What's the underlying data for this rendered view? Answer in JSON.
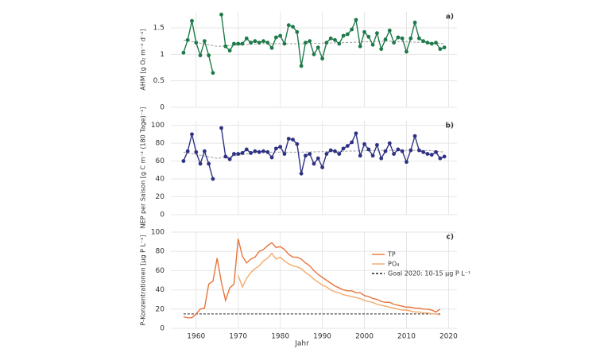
{
  "chart_data": [
    {
      "type": "line",
      "panel_label": "a)",
      "y_label": "AHM [g O₂ m⁻² d⁻¹]",
      "x": [
        1957,
        1958,
        1959,
        1960,
        1961,
        1962,
        1963,
        1964,
        1965,
        1966,
        1967,
        1968,
        1969,
        1970,
        1971,
        1972,
        1973,
        1974,
        1975,
        1976,
        1977,
        1978,
        1979,
        1980,
        1981,
        1982,
        1983,
        1984,
        1985,
        1986,
        1987,
        1988,
        1989,
        1990,
        1991,
        1992,
        1993,
        1994,
        1995,
        1996,
        1997,
        1998,
        1999,
        2000,
        2001,
        2002,
        2003,
        2004,
        2005,
        2006,
        2007,
        2008,
        2009,
        2010,
        2011,
        2012,
        2013,
        2014,
        2015,
        2016,
        2017,
        2018,
        2019
      ],
      "series": [
        {
          "color": "#1e7a4a",
          "markers": true,
          "values": [
            1.03,
            1.27,
            1.63,
            1.22,
            0.98,
            1.25,
            0.98,
            0.65,
            null,
            1.75,
            1.15,
            1.07,
            1.2,
            1.2,
            1.2,
            1.3,
            1.22,
            1.25,
            1.22,
            1.25,
            1.22,
            1.12,
            1.32,
            1.35,
            1.2,
            1.55,
            1.52,
            1.42,
            0.78,
            1.22,
            1.25,
            1.0,
            1.13,
            0.92,
            1.22,
            1.3,
            1.27,
            1.2,
            1.35,
            1.38,
            1.47,
            1.65,
            1.15,
            1.42,
            1.33,
            1.18,
            1.4,
            1.1,
            1.28,
            1.45,
            1.22,
            1.32,
            1.3,
            1.05,
            1.3,
            1.6,
            1.3,
            1.25,
            1.22,
            1.2,
            1.22,
            1.1,
            1.13
          ]
        }
      ],
      "trend": {
        "color": "#9a9a9a",
        "x": [
          1957,
          1965,
          1975,
          1985,
          1995,
          2005,
          2015,
          2019
        ],
        "values": [
          1.27,
          1.15,
          1.2,
          1.2,
          1.22,
          1.25,
          1.22,
          1.2
        ]
      },
      "ylim": [
        0,
        1.8
      ],
      "yticks": [
        0,
        0.5,
        1,
        1.5
      ],
      "grid": true
    },
    {
      "type": "line",
      "panel_label": "b)",
      "y_label": "NEP per Saison [g C m⁻² (180 Tage)⁻¹]",
      "x": [
        1957,
        1958,
        1959,
        1960,
        1961,
        1962,
        1963,
        1964,
        1965,
        1966,
        1967,
        1968,
        1969,
        1970,
        1971,
        1972,
        1973,
        1974,
        1975,
        1976,
        1977,
        1978,
        1979,
        1980,
        1981,
        1982,
        1983,
        1984,
        1985,
        1986,
        1987,
        1988,
        1989,
        1990,
        1991,
        1992,
        1993,
        1994,
        1995,
        1996,
        1997,
        1998,
        1999,
        2000,
        2001,
        2002,
        2003,
        2004,
        2005,
        2006,
        2007,
        2008,
        2009,
        2010,
        2011,
        2012,
        2013,
        2014,
        2015,
        2016,
        2017,
        2018,
        2019
      ],
      "series": [
        {
          "color": "#2e3283",
          "markers": true,
          "values": [
            60,
            71,
            90,
            70,
            57,
            71,
            57,
            40,
            null,
            97,
            65,
            62,
            68,
            68,
            69,
            73,
            69,
            71,
            70,
            71,
            70,
            64,
            74,
            76,
            68,
            85,
            84,
            79,
            46,
            66,
            68,
            57,
            63,
            53,
            68,
            72,
            71,
            68,
            74,
            77,
            81,
            91,
            66,
            79,
            73,
            66,
            78,
            63,
            71,
            80,
            68,
            73,
            71,
            59,
            72,
            88,
            72,
            70,
            68,
            67,
            70,
            63,
            65
          ]
        }
      ],
      "trend": {
        "color": "#9a9a9a",
        "x": [
          1957,
          1965,
          1975,
          1985,
          1995,
          2005,
          2015,
          2019
        ],
        "values": [
          70,
          63,
          70,
          70,
          71,
          72,
          72,
          70
        ]
      },
      "ylim": [
        0,
        105
      ],
      "yticks": [
        0,
        20,
        40,
        60,
        80,
        100
      ],
      "grid": true
    },
    {
      "type": "line",
      "panel_label": "c)",
      "y_label": "P-Konzentrationen [µg P L⁻¹]",
      "x_label": "Jahr",
      "x": [
        1957,
        1958,
        1959,
        1960,
        1961,
        1962,
        1963,
        1964,
        1965,
        1966,
        1967,
        1968,
        1969,
        1970,
        1971,
        1972,
        1973,
        1974,
        1975,
        1976,
        1977,
        1978,
        1979,
        1980,
        1981,
        1982,
        1983,
        1984,
        1985,
        1986,
        1987,
        1988,
        1989,
        1990,
        1991,
        1992,
        1993,
        1994,
        1995,
        1996,
        1997,
        1998,
        1999,
        2000,
        2001,
        2002,
        2003,
        2004,
        2005,
        2006,
        2007,
        2008,
        2009,
        2010,
        2011,
        2012,
        2013,
        2014,
        2015,
        2016,
        2017,
        2018
      ],
      "series": [
        {
          "name": "TP",
          "color": "#e8743b",
          "markers": false,
          "values": [
            12,
            11,
            11,
            15,
            20,
            21,
            46,
            49,
            73,
            48,
            29,
            42,
            46,
            93,
            75,
            68,
            72,
            74,
            80,
            82,
            86,
            89,
            84,
            85,
            82,
            77,
            74,
            74,
            72,
            68,
            65,
            60,
            56,
            53,
            50,
            47,
            44,
            42,
            40,
            39,
            39,
            37,
            37,
            34,
            33,
            31,
            30,
            28,
            27,
            27,
            25,
            24,
            23,
            22,
            22,
            21,
            21,
            20,
            20,
            19,
            17,
            20
          ]
        },
        {
          "name": "PO₄",
          "color": "#f4a96a",
          "markers": false,
          "values": [
            null,
            null,
            null,
            null,
            null,
            null,
            null,
            null,
            null,
            null,
            null,
            null,
            null,
            55,
            43,
            52,
            58,
            62,
            65,
            70,
            73,
            78,
            72,
            74,
            70,
            67,
            65,
            64,
            62,
            58,
            55,
            51,
            48,
            45,
            43,
            40,
            38,
            37,
            35,
            34,
            33,
            32,
            31,
            29,
            28,
            27,
            25,
            24,
            23,
            22,
            21,
            20,
            19,
            19,
            18,
            17,
            17,
            16,
            16,
            15,
            15,
            14
          ]
        }
      ],
      "reference_line": {
        "name": "Goal 2020: 10-15 µg P L⁻¹",
        "color": "#222222",
        "value": 15
      },
      "xlim": [
        1954,
        2022
      ],
      "xticks": [
        1960,
        1970,
        1980,
        1990,
        2000,
        2010,
        2020
      ],
      "ylim": [
        0,
        100
      ],
      "yticks": [
        0,
        20,
        40,
        60,
        80,
        100
      ],
      "grid": true
    }
  ]
}
